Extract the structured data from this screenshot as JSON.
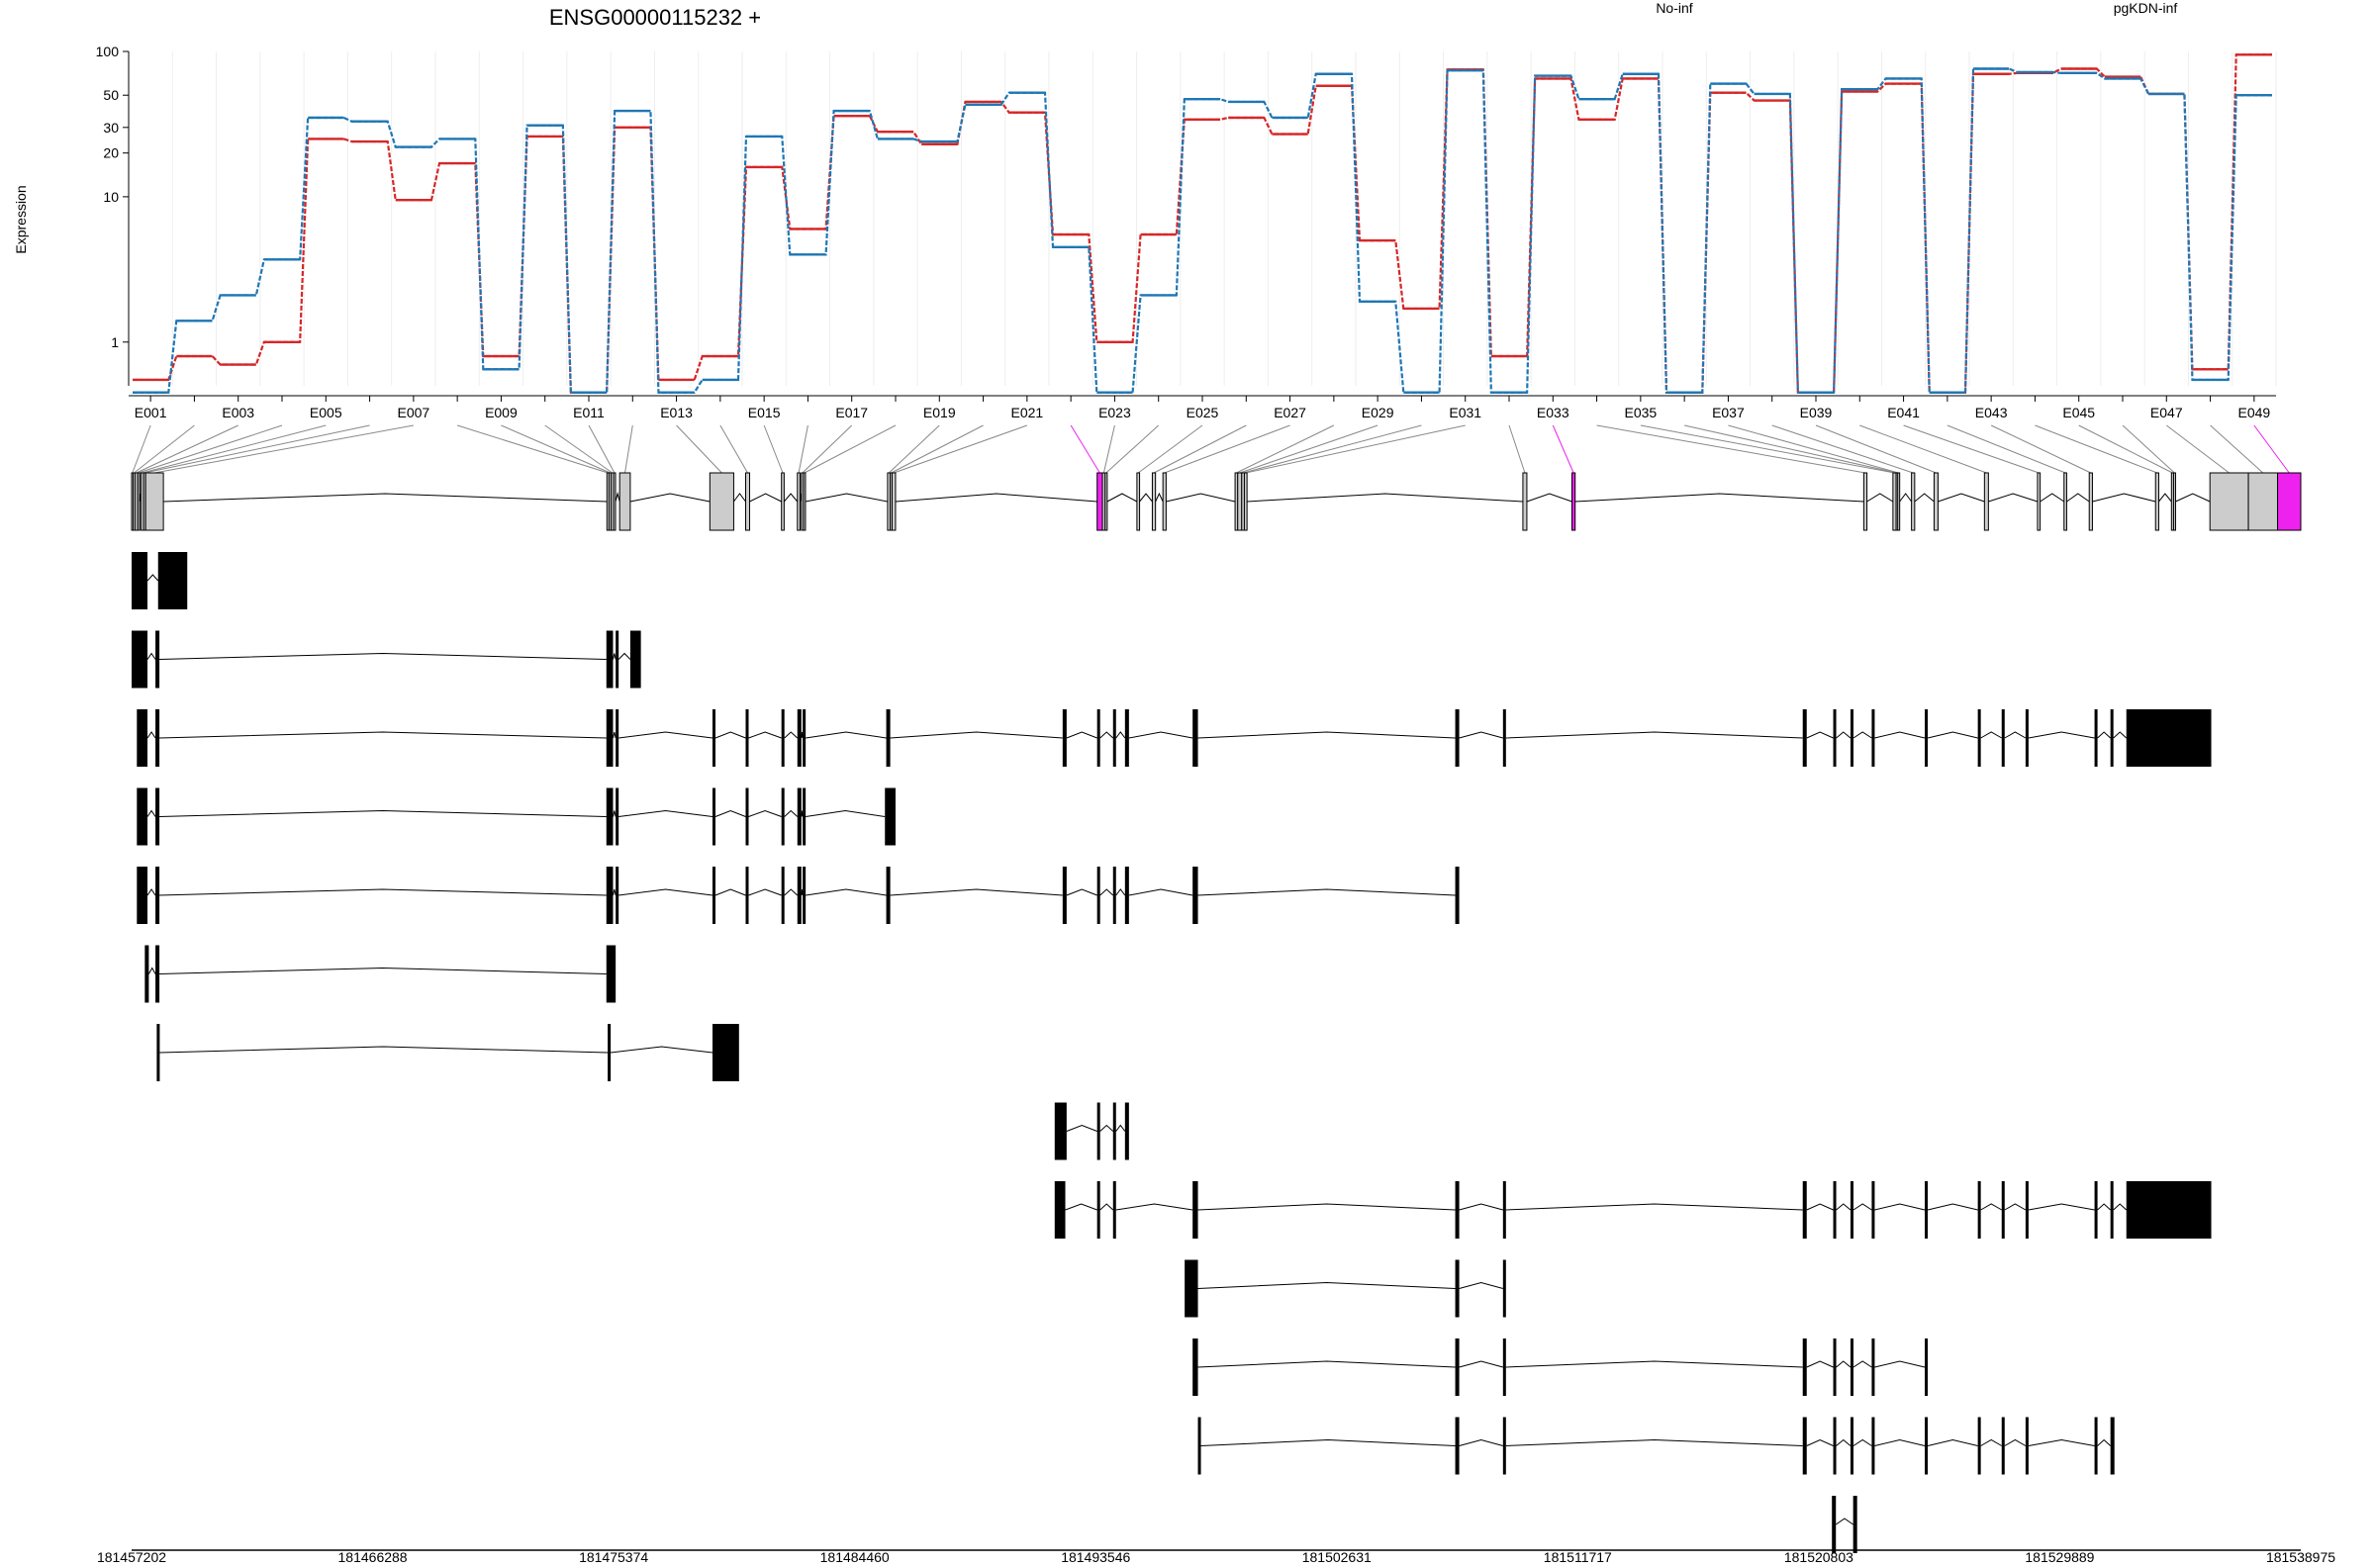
{
  "chart_data": {
    "type": "line",
    "title": "ENSG00000115232 +",
    "ylabel": "Expression",
    "xlabel": "",
    "y_scale": "log",
    "ylim": [
      0.5,
      100
    ],
    "y_ticks": [
      "100",
      "50",
      "30",
      "20",
      "10",
      "1"
    ],
    "y_tick_values": [
      100,
      50,
      30,
      20,
      10,
      1
    ],
    "grid": "vertical lines at each exon bin",
    "legend": [
      "No-inf",
      "pgKDN-inf"
    ],
    "legend_placement": "top-right",
    "colors": {
      "no_inf": "#d62728",
      "pgkdn_inf": "#1f77b4",
      "highlight": "#ee22ee",
      "exon_fill": "#cccccc",
      "transcript": "#000000"
    },
    "exon_ids": [
      "E001",
      "E002",
      "E003",
      "E004",
      "E005",
      "E006",
      "E007",
      "E008",
      "E009",
      "E010",
      "E011",
      "E012",
      "E013",
      "E014",
      "E015",
      "E016",
      "E017",
      "E018",
      "E019",
      "E020",
      "E021",
      "E022",
      "E023",
      "E024",
      "E025",
      "E026",
      "E027",
      "E028",
      "E029",
      "E030",
      "E031",
      "E032",
      "E033",
      "E034",
      "E035",
      "E036",
      "E037",
      "E038",
      "E039",
      "E040",
      "E041",
      "E042",
      "E043",
      "E044",
      "E045",
      "E046",
      "E047",
      "E048",
      "E049"
    ],
    "x_tick_labels": [
      "E001",
      "E003",
      "E005",
      "E007",
      "E009",
      "E011",
      "E013",
      "E015",
      "E017",
      "E019",
      "E021",
      "E023",
      "E025",
      "E027",
      "E029",
      "E031",
      "E033",
      "E035",
      "E037",
      "E039",
      "E041",
      "E043",
      "E045",
      "E047",
      "E049"
    ],
    "series": [
      {
        "name": "No-inf",
        "values": [
          0.55,
          0.8,
          0.7,
          1.0,
          25,
          24,
          9.5,
          17,
          0.8,
          26,
          0.45,
          30,
          0.55,
          0.8,
          16,
          6,
          36,
          28,
          23,
          45,
          38,
          5.5,
          1.0,
          5.5,
          34,
          35,
          27,
          58,
          5,
          1.7,
          75,
          0.8,
          65,
          34,
          65,
          0.45,
          52,
          46,
          0.45,
          53,
          60,
          0.45,
          70,
          71,
          76,
          67,
          51,
          0.65,
          95
        ]
      },
      {
        "name": "pgKDN-inf",
        "values": [
          0.45,
          1.4,
          2.1,
          3.7,
          35,
          33,
          22,
          25,
          0.65,
          31,
          0.45,
          39,
          0.45,
          0.55,
          26,
          4,
          39,
          25,
          24,
          43,
          52,
          4.5,
          0.45,
          2.1,
          47,
          45,
          35,
          70,
          1.9,
          0.45,
          74,
          0.45,
          68,
          47,
          70,
          0.45,
          60,
          51,
          0.45,
          55,
          65,
          0.45,
          76,
          72,
          71,
          65,
          51,
          0.55,
          50
        ]
      }
    ],
    "genomic_axis": {
      "range": [
        181457202,
        181538975
      ],
      "tick_labels": [
        "181457202",
        "181466288",
        "181475374",
        "181484460",
        "181493546",
        "181502631",
        "181511717",
        "181520803",
        "181529889",
        "181538975"
      ]
    },
    "exon_model": {
      "exons": [
        [
          181457202,
          181457260
        ],
        [
          181457260,
          181457330
        ],
        [
          181457330,
          181457430
        ],
        [
          181457430,
          181457480
        ],
        [
          181457550,
          181457650
        ],
        [
          181457650,
          181457730
        ],
        [
          181457730,
          181458400
        ],
        [
          181475120,
          181475200
        ],
        [
          181475200,
          181475280
        ],
        [
          181475280,
          181475370
        ],
        [
          181475370,
          181475440
        ],
        [
          181475600,
          181476000
        ],
        [
          181479000,
          181479900
        ],
        [
          181480350,
          181480500
        ],
        [
          181481700,
          181481800
        ],
        [
          181482300,
          181482400
        ],
        [
          181482450,
          181482530
        ],
        [
          181482530,
          181482600
        ],
        [
          181485700,
          181485800
        ],
        [
          181485800,
          181485870
        ],
        [
          181485870,
          181486000
        ],
        [
          181493600,
          181493800
        ],
        [
          181493800,
          181493900
        ],
        [
          181493900,
          181493980
        ],
        [
          181495100,
          181495200
        ],
        [
          181495680,
          181495800
        ],
        [
          181496080,
          181496200
        ],
        [
          181498800,
          181498900
        ],
        [
          181498900,
          181499050
        ],
        [
          181499050,
          181499150
        ],
        [
          181499150,
          181499250
        ],
        [
          181509650,
          181509800
        ],
        [
          181511500,
          181511620
        ],
        [
          181522500,
          181522620
        ],
        [
          181523600,
          181523720
        ],
        [
          181523720,
          181523780
        ],
        [
          181523780,
          181523840
        ],
        [
          181524300,
          181524420
        ],
        [
          181525150,
          181525300
        ],
        [
          181527050,
          181527200
        ],
        [
          181529050,
          181529150
        ],
        [
          181530050,
          181530150
        ],
        [
          181531000,
          181531120
        ],
        [
          181533500,
          181533620
        ],
        [
          181534100,
          181534180
        ],
        [
          181534180,
          181534250
        ],
        [
          181535550,
          181537000
        ],
        [
          181537000,
          181538100
        ],
        [
          181538100,
          181538975
        ]
      ],
      "highlighted": [
        21,
        32,
        48
      ]
    },
    "transcripts": [
      {
        "exons": [
          [
            181457202,
            181457800
          ],
          [
            181458200,
            181459300
          ]
        ]
      },
      {
        "exons": [
          [
            181457202,
            181457800
          ],
          [
            181458100,
            181458250
          ],
          [
            181475100,
            181475350
          ],
          [
            181475450,
            181475550
          ],
          [
            181476000,
            181476400
          ]
        ]
      },
      {
        "exons": [
          [
            181457400,
            181457800
          ],
          [
            181458100,
            181458250
          ],
          [
            181475100,
            181475350
          ],
          [
            181475450,
            181475550
          ],
          [
            181479100,
            181479200
          ],
          [
            181480350,
            181480450
          ],
          [
            181481700,
            181481800
          ],
          [
            181482300,
            181482450
          ],
          [
            181482500,
            181482600
          ],
          [
            181485650,
            181485800
          ],
          [
            181492300,
            181492450
          ],
          [
            181493600,
            181493700
          ],
          [
            181494200,
            181494300
          ],
          [
            181494650,
            181494800
          ],
          [
            181497200,
            181497400
          ],
          [
            181507100,
            181507250
          ],
          [
            181508900,
            181509000
          ],
          [
            181520200,
            181520350
          ],
          [
            181521350,
            181521450
          ],
          [
            181522000,
            181522100
          ],
          [
            181522800,
            181522900
          ],
          [
            181524800,
            181524900
          ],
          [
            181526800,
            181526900
          ],
          [
            181527700,
            181527800
          ],
          [
            181528600,
            181528700
          ],
          [
            181531200,
            181531300
          ],
          [
            181531800,
            181531900
          ],
          [
            181532400,
            181535600
          ]
        ]
      },
      {
        "exons": [
          [
            181457400,
            181457800
          ],
          [
            181458100,
            181458250
          ],
          [
            181475100,
            181475350
          ],
          [
            181475450,
            181475550
          ],
          [
            181479100,
            181479200
          ],
          [
            181480350,
            181480450
          ],
          [
            181481700,
            181481800
          ],
          [
            181482300,
            181482450
          ],
          [
            181482500,
            181482600
          ],
          [
            181485600,
            181486000
          ]
        ]
      },
      {
        "exons": [
          [
            181457400,
            181457800
          ],
          [
            181458100,
            181458250
          ],
          [
            181475100,
            181475350
          ],
          [
            181475450,
            181475550
          ],
          [
            181479100,
            181479200
          ],
          [
            181480350,
            181480450
          ],
          [
            181481700,
            181481800
          ],
          [
            181482300,
            181482450
          ],
          [
            181482500,
            181482600
          ],
          [
            181485650,
            181485800
          ],
          [
            181492300,
            181492450
          ],
          [
            181493600,
            181493700
          ],
          [
            181494200,
            181494300
          ],
          [
            181494650,
            181494800
          ],
          [
            181497200,
            181497400
          ],
          [
            181507100,
            181507250
          ]
        ]
      },
      {
        "exons": [
          [
            181457700,
            181457850
          ],
          [
            181458100,
            181458250
          ],
          [
            181475100,
            181475450
          ]
        ]
      },
      {
        "exons": [
          [
            181458150,
            181458250
          ],
          [
            181475150,
            181475250
          ],
          [
            181479100,
            181480100
          ]
        ]
      },
      {
        "exons": [
          [
            181492000,
            181492450
          ],
          [
            181493600,
            181493700
          ],
          [
            181494200,
            181494300
          ],
          [
            181494650,
            181494800
          ]
        ]
      },
      {
        "exons": [
          [
            181492000,
            181492400
          ],
          [
            181493600,
            181493700
          ],
          [
            181494200,
            181494300
          ],
          [
            181497200,
            181497400
          ],
          [
            181507100,
            181507250
          ],
          [
            181508900,
            181509000
          ],
          [
            181520200,
            181520350
          ],
          [
            181521350,
            181521450
          ],
          [
            181522000,
            181522100
          ],
          [
            181522800,
            181522900
          ],
          [
            181524800,
            181524900
          ],
          [
            181526800,
            181526900
          ],
          [
            181527700,
            181527800
          ],
          [
            181528600,
            181528700
          ],
          [
            181531200,
            181531300
          ],
          [
            181531800,
            181531900
          ],
          [
            181532400,
            181535600
          ]
        ]
      },
      {
        "exons": [
          [
            181496900,
            181497400
          ],
          [
            181507100,
            181507250
          ],
          [
            181508900,
            181509000
          ]
        ]
      },
      {
        "exons": [
          [
            181497200,
            181497400
          ],
          [
            181507100,
            181507250
          ],
          [
            181508900,
            181509000
          ],
          [
            181520200,
            181520350
          ],
          [
            181521350,
            181521450
          ],
          [
            181522000,
            181522100
          ],
          [
            181522800,
            181522900
          ],
          [
            181524800,
            181524900
          ]
        ]
      },
      {
        "exons": [
          [
            181497400,
            181497500
          ],
          [
            181507100,
            181507250
          ],
          [
            181508900,
            181509000
          ],
          [
            181520200,
            181520350
          ],
          [
            181521350,
            181521450
          ],
          [
            181522000,
            181522100
          ],
          [
            181522800,
            181522900
          ],
          [
            181524800,
            181524900
          ],
          [
            181526800,
            181526900
          ],
          [
            181527700,
            181527800
          ],
          [
            181528600,
            181528700
          ],
          [
            181531200,
            181531300
          ],
          [
            181531800,
            181531950
          ]
        ]
      },
      {
        "exons": [
          [
            181521300,
            181521450
          ],
          [
            181522100,
            181522250
          ]
        ]
      }
    ]
  }
}
